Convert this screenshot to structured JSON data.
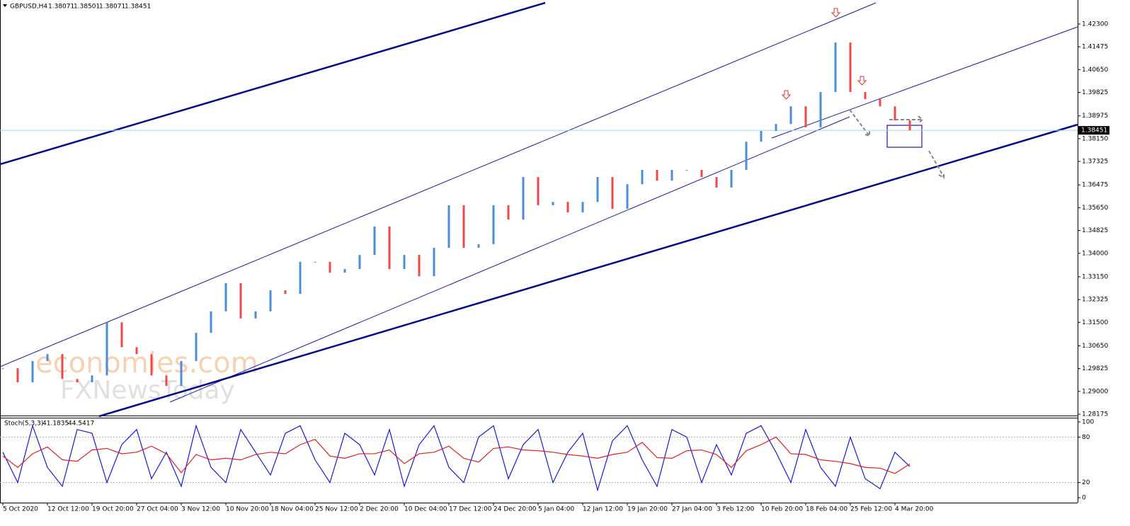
{
  "header": {
    "symbol": "GBPUSD,H4",
    "quote": [
      "1.38071",
      "1.38501",
      "1.38071",
      "1.38451"
    ]
  },
  "watermark": [
    "economies.com",
    "FXNewsToday"
  ],
  "chart_data": [
    {
      "type": "price",
      "categories": [
        "5 Oct 2020",
        null,
        null,
        "12 Oct 12:00",
        null,
        null,
        "19 Oct 20:00",
        null,
        null,
        "27 Oct 04:00",
        null,
        null,
        "3 Nov 12:00",
        null,
        null,
        "10 Nov 20:00",
        null,
        null,
        "18 Nov 04:00",
        null,
        null,
        "25 Nov 12:00",
        null,
        null,
        "2 Dec 20:00",
        null,
        null,
        "10 Dec 04:00",
        null,
        null,
        "17 Dec 12:00",
        null,
        null,
        "24 Dec 20:00",
        null,
        null,
        "5 Jan 04:00",
        null,
        null,
        "12 Jan 12:00",
        null,
        null,
        "19 Jan 20:00",
        null,
        null,
        "27 Jan 04:00",
        null,
        null,
        "3 Feb 12:00",
        null,
        null,
        "10 Feb 20:00",
        null,
        null,
        "18 Feb 04:00",
        null,
        null,
        "25 Feb 12:00",
        null,
        null,
        "4 Mar 20:00",
        null
      ],
      "series": [
        {
          "name": "GBPUSD close",
          "up_color": "#4a8fd6",
          "down_color": "#f04848",
          "values": [
            1.2984,
            1.2933,
            1.301,
            1.3035,
            1.2945,
            1.2933,
            1.2958,
            1.315,
            1.306,
            1.3035,
            1.2958,
            1.292,
            1.301,
            1.3112,
            1.319,
            1.3292,
            1.3164,
            1.319,
            1.3266,
            1.3253,
            1.3369,
            1.3369,
            1.333,
            1.3343,
            1.3394,
            1.3497,
            1.3343,
            1.3394,
            1.3317,
            1.342,
            1.3574,
            1.342,
            1.3433,
            1.3574,
            1.3522,
            1.3676,
            1.3574,
            1.3586,
            1.3548,
            1.3586,
            1.3676,
            1.3561,
            1.365,
            1.3702,
            1.3663,
            1.3702,
            1.3702,
            1.3676,
            1.3638,
            1.3702,
            1.3804,
            1.3843,
            1.3868,
            1.3932,
            1.3856,
            1.3984,
            1.4163,
            1.3984,
            1.3958,
            1.3932,
            1.3881,
            1.3845
          ]
        }
      ],
      "current_price": {
        "value": 1.38451,
        "label": "1.38451"
      },
      "ylim": [
        1.281,
        1.4317
      ],
      "yticks": [
        {
          "value": 1.423,
          "label": "1.42300"
        },
        {
          "value": 1.41475,
          "label": "1.41475"
        },
        {
          "value": 1.4065,
          "label": "1.40650"
        },
        {
          "value": 1.39825,
          "label": "1.39825"
        },
        {
          "value": 1.38975,
          "label": "1.38975"
        },
        {
          "value": 1.3815,
          "label": "1.38150"
        },
        {
          "value": 1.37325,
          "label": "1.37325"
        },
        {
          "value": 1.36475,
          "label": "1.36475"
        },
        {
          "value": 1.3565,
          "label": "1.35650"
        },
        {
          "value": 1.34825,
          "label": "1.34825"
        },
        {
          "value": 1.34,
          "label": "1.34000"
        },
        {
          "value": 1.3315,
          "label": "1.33150"
        },
        {
          "value": 1.32325,
          "label": "1.32325"
        },
        {
          "value": 1.315,
          "label": "1.31500"
        },
        {
          "value": 1.3065,
          "label": "1.30650"
        },
        {
          "value": 1.29825,
          "label": "1.29825"
        },
        {
          "value": 1.29,
          "label": "1.29000"
        },
        {
          "value": 1.28175,
          "label": "1.28175"
        }
      ]
    },
    {
      "type": "oscillator",
      "title": "Stoch(5,3,3)",
      "series": [
        {
          "name": "41.1835",
          "color": "#1a1ad6",
          "values": [
            60,
            20,
            95,
            40,
            15,
            90,
            85,
            20,
            70,
            90,
            25,
            60,
            15,
            95,
            40,
            20,
            90,
            60,
            30,
            85,
            95,
            50,
            20,
            85,
            70,
            30,
            90,
            15,
            70,
            95,
            40,
            20,
            80,
            95,
            25,
            70,
            90,
            20,
            60,
            85,
            10,
            75,
            95,
            50,
            15,
            90,
            80,
            20,
            70,
            30,
            85,
            95,
            60,
            20,
            90,
            40,
            15,
            80,
            25,
            12,
            60,
            41.1835
          ]
        },
        {
          "name": "44.5417",
          "color": "#e02020",
          "values": [
            55,
            40,
            58,
            67,
            50,
            48,
            63,
            65,
            58,
            60,
            68,
            58,
            33,
            57,
            50,
            52,
            50,
            57,
            60,
            58,
            70,
            77,
            55,
            52,
            58,
            58,
            63,
            45,
            58,
            60,
            68,
            52,
            47,
            65,
            67,
            63,
            62,
            60,
            57,
            55,
            52,
            57,
            60,
            73,
            53,
            52,
            62,
            63,
            57,
            40,
            62,
            70,
            80,
            58,
            57,
            50,
            48,
            45,
            40,
            39,
            32,
            44.5417
          ]
        }
      ],
      "levels": [
        80,
        20
      ],
      "ylim": [
        -6.5,
        105.6
      ],
      "yticks": [
        100,
        80,
        20,
        0
      ]
    }
  ]
}
